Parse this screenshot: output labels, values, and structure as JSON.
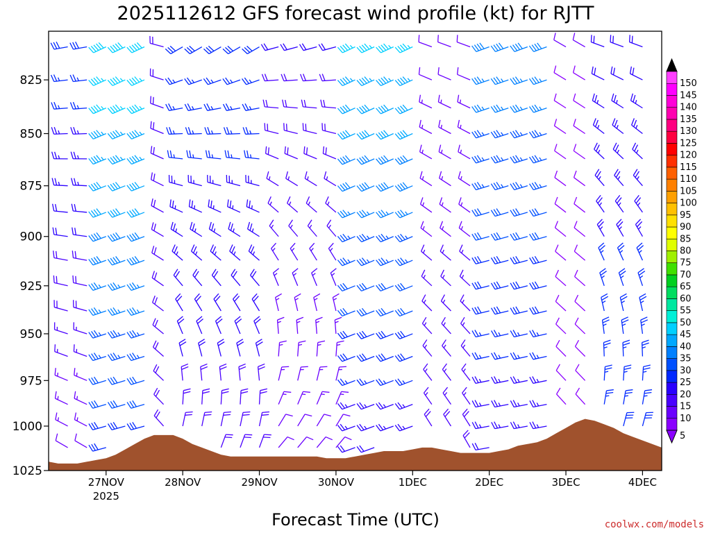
{
  "chart_data": {
    "type": "wind-barb-profile",
    "title": "2025112612 GFS forecast wind profile (kt) for RJTT",
    "xlabel": "Forecast Time (UTC)",
    "ylabel": "",
    "y_axis": {
      "scale": "pressure (hPa), inverted",
      "ylim": [
        1025,
        803
      ],
      "ticks": [
        825,
        850,
        875,
        900,
        925,
        950,
        975,
        1000,
        1025
      ]
    },
    "x_axis": {
      "xlim_hours": [
        -6,
        186
      ],
      "ticks": [
        {
          "label": "27NOV",
          "sublabel": "2025",
          "hour": 12
        },
        {
          "label": "28NOV",
          "hour": 36
        },
        {
          "label": "29NOV",
          "hour": 60
        },
        {
          "label": "30NOV",
          "hour": 84
        },
        {
          "label": "1DEC",
          "hour": 108
        },
        {
          "label": "2DEC",
          "hour": 132
        },
        {
          "label": "3DEC",
          "hour": 156
        },
        {
          "label": "4DEC",
          "hour": 180
        }
      ]
    },
    "levels": [
      810,
      825,
      838,
      850,
      862,
      875,
      888,
      900,
      912,
      925,
      938,
      950,
      962,
      975,
      988,
      1000,
      1012
    ],
    "surface_pressure": {
      "hours": [
        -6,
        -3,
        0,
        3,
        6,
        9,
        12,
        15,
        18,
        21,
        24,
        27,
        30,
        33,
        36,
        39,
        42,
        45,
        48,
        51,
        54,
        57,
        60,
        63,
        66,
        69,
        72,
        75,
        78,
        81,
        84,
        87,
        90,
        93,
        96,
        99,
        102,
        105,
        108,
        111,
        114,
        117,
        120,
        123,
        126,
        129,
        132,
        135,
        138,
        141,
        144,
        147,
        150,
        153,
        156,
        159,
        162,
        165,
        168,
        171,
        174,
        177,
        180,
        183,
        186
      ],
      "values": [
        1020,
        1021,
        1021,
        1021,
        1020,
        1019,
        1018,
        1016,
        1013,
        1010,
        1007,
        1005,
        1005,
        1005,
        1007,
        1010,
        1012,
        1014,
        1016,
        1017,
        1017,
        1017,
        1017,
        1017,
        1017,
        1017,
        1017,
        1017,
        1017,
        1018,
        1018,
        1018,
        1017,
        1016,
        1015,
        1014,
        1014,
        1014,
        1013,
        1012,
        1012,
        1013,
        1014,
        1015,
        1015,
        1015,
        1015,
        1014,
        1013,
        1011,
        1010,
        1009,
        1007,
        1004,
        1001,
        998,
        996,
        997,
        999,
        1001,
        1004,
        1006,
        1008,
        1010,
        1012
      ]
    },
    "wind_regimes": [
      {
        "hours": [
          -6,
          9
        ],
        "upper_dir": 260,
        "upper_spd": 28,
        "lower_dir": 300,
        "lower_spd": 12
      },
      {
        "hours": [
          9,
          27
        ],
        "upper_dir": 245,
        "upper_spd": 48,
        "lower_dir": 255,
        "lower_spd": 28
      },
      {
        "hours": [
          27,
          36
        ],
        "upper_dir": 285,
        "upper_spd": 18,
        "lower_dir": 320,
        "lower_spd": 20
      },
      {
        "hours": [
          36,
          66
        ],
        "upper_dir": 240,
        "upper_spd": 28,
        "lower_dir": 20,
        "lower_spd": 18
      },
      {
        "hours": [
          66,
          90
        ],
        "upper_dir": 255,
        "upper_spd": 20,
        "lower_dir": 40,
        "lower_spd": 12
      },
      {
        "hours": [
          90,
          114
        ],
        "upper_dir": 245,
        "upper_spd": 45,
        "lower_dir": 250,
        "lower_spd": 22
      },
      {
        "hours": [
          114,
          132
        ],
        "upper_dir": 290,
        "upper_spd": 12,
        "lower_dir": 330,
        "lower_spd": 18
      },
      {
        "hours": [
          132,
          153
        ],
        "upper_dir": 250,
        "upper_spd": 38,
        "lower_dir": 260,
        "lower_spd": 22
      },
      {
        "hours": [
          153,
          164
        ],
        "upper_dir": 300,
        "upper_spd": 10,
        "lower_dir": 320,
        "lower_spd": 8
      },
      {
        "hours": [
          164,
          186
        ],
        "upper_dir": 290,
        "upper_spd": 22,
        "lower_dir": 20,
        "lower_spd": 28
      }
    ],
    "colorbar": {
      "levels": [
        5,
        10,
        15,
        20,
        25,
        30,
        35,
        40,
        45,
        50,
        55,
        60,
        65,
        70,
        75,
        80,
        85,
        90,
        95,
        100,
        105,
        110,
        115,
        120,
        125,
        130,
        135,
        140,
        145,
        150
      ],
      "colors": [
        "#8a00ff",
        "#6a00ff",
        "#4a00ff",
        "#2a00ff",
        "#0028ff",
        "#0050ff",
        "#0080ff",
        "#00a8ff",
        "#00d0ff",
        "#00f0d8",
        "#00e8a0",
        "#00dd60",
        "#00d020",
        "#40e000",
        "#a0f000",
        "#e0ff00",
        "#ffff00",
        "#ffe000",
        "#ffc000",
        "#ffa000",
        "#ff8000",
        "#ff6000",
        "#ff3000",
        "#ff0000",
        "#ff0040",
        "#ff0080",
        "#ff00b0",
        "#ff00d8",
        "#ff00ff",
        "#ff40ff"
      ]
    },
    "surface_color": "#a0522d"
  },
  "credit": "coolwx.com/models"
}
